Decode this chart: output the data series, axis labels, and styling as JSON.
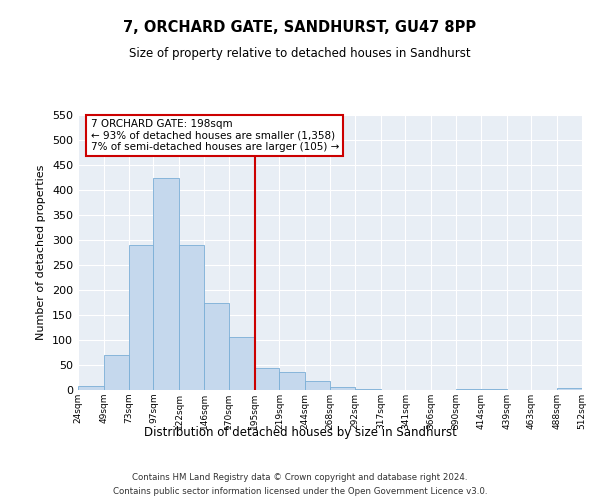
{
  "title": "7, ORCHARD GATE, SANDHURST, GU47 8PP",
  "subtitle": "Size of property relative to detached houses in Sandhurst",
  "xlabel": "Distribution of detached houses by size in Sandhurst",
  "ylabel": "Number of detached properties",
  "bin_labels": [
    "24sqm",
    "49sqm",
    "73sqm",
    "97sqm",
    "122sqm",
    "146sqm",
    "170sqm",
    "195sqm",
    "219sqm",
    "244sqm",
    "268sqm",
    "292sqm",
    "317sqm",
    "341sqm",
    "366sqm",
    "390sqm",
    "414sqm",
    "439sqm",
    "463sqm",
    "488sqm",
    "512sqm"
  ],
  "bin_edges": [
    24,
    49,
    73,
    97,
    122,
    146,
    170,
    195,
    219,
    244,
    268,
    292,
    317,
    341,
    366,
    390,
    414,
    439,
    463,
    488,
    512
  ],
  "bar_heights": [
    8,
    70,
    291,
    424,
    290,
    175,
    107,
    44,
    37,
    18,
    7,
    3,
    0,
    0,
    0,
    3,
    3,
    0,
    0,
    5
  ],
  "bar_color": "#c5d8ed",
  "bar_edgecolor": "#7aaed6",
  "vline_x": 195,
  "vline_color": "#cc0000",
  "annotation_title": "7 ORCHARD GATE: 198sqm",
  "annotation_line1": "← 93% of detached houses are smaller (1,358)",
  "annotation_line2": "7% of semi-detached houses are larger (105) →",
  "annotation_box_edgecolor": "#cc0000",
  "ylim": [
    0,
    550
  ],
  "yticks": [
    0,
    50,
    100,
    150,
    200,
    250,
    300,
    350,
    400,
    450,
    500,
    550
  ],
  "footer_line1": "Contains HM Land Registry data © Crown copyright and database right 2024.",
  "footer_line2": "Contains public sector information licensed under the Open Government Licence v3.0.",
  "bg_color": "#ffffff",
  "plot_bg_color": "#e8eef5",
  "grid_color": "#ffffff"
}
